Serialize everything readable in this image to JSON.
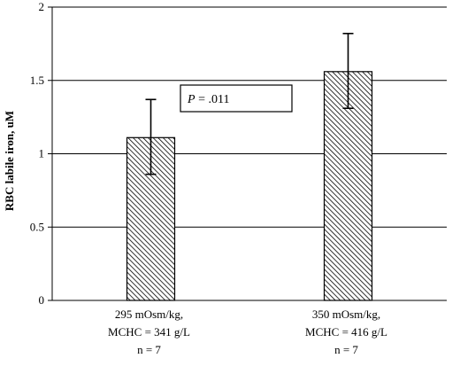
{
  "chart_data": {
    "type": "bar",
    "title": "",
    "xlabel": "",
    "ylabel": "RBC labile iron, uM",
    "ylim": [
      0,
      2
    ],
    "yticks": [
      "0",
      "0.5",
      "1",
      "1.5",
      "2"
    ],
    "ytick_values": [
      0,
      0.5,
      1,
      1.5,
      2
    ],
    "grid": "horizontal",
    "categories": [
      [
        "295 mOsm/kg,",
        "MCHC = 341 g/L",
        "n = 7"
      ],
      [
        "350 mOsm/kg,",
        "MCHC = 416 g/L",
        "n = 7"
      ]
    ],
    "values": [
      1.11,
      1.56
    ],
    "error_upper": [
      1.37,
      1.82
    ],
    "error_lower": [
      0.86,
      1.31
    ],
    "bar_fill": "diagonal hatch",
    "annotation": {
      "italic": "P",
      "text": " = .011"
    }
  }
}
